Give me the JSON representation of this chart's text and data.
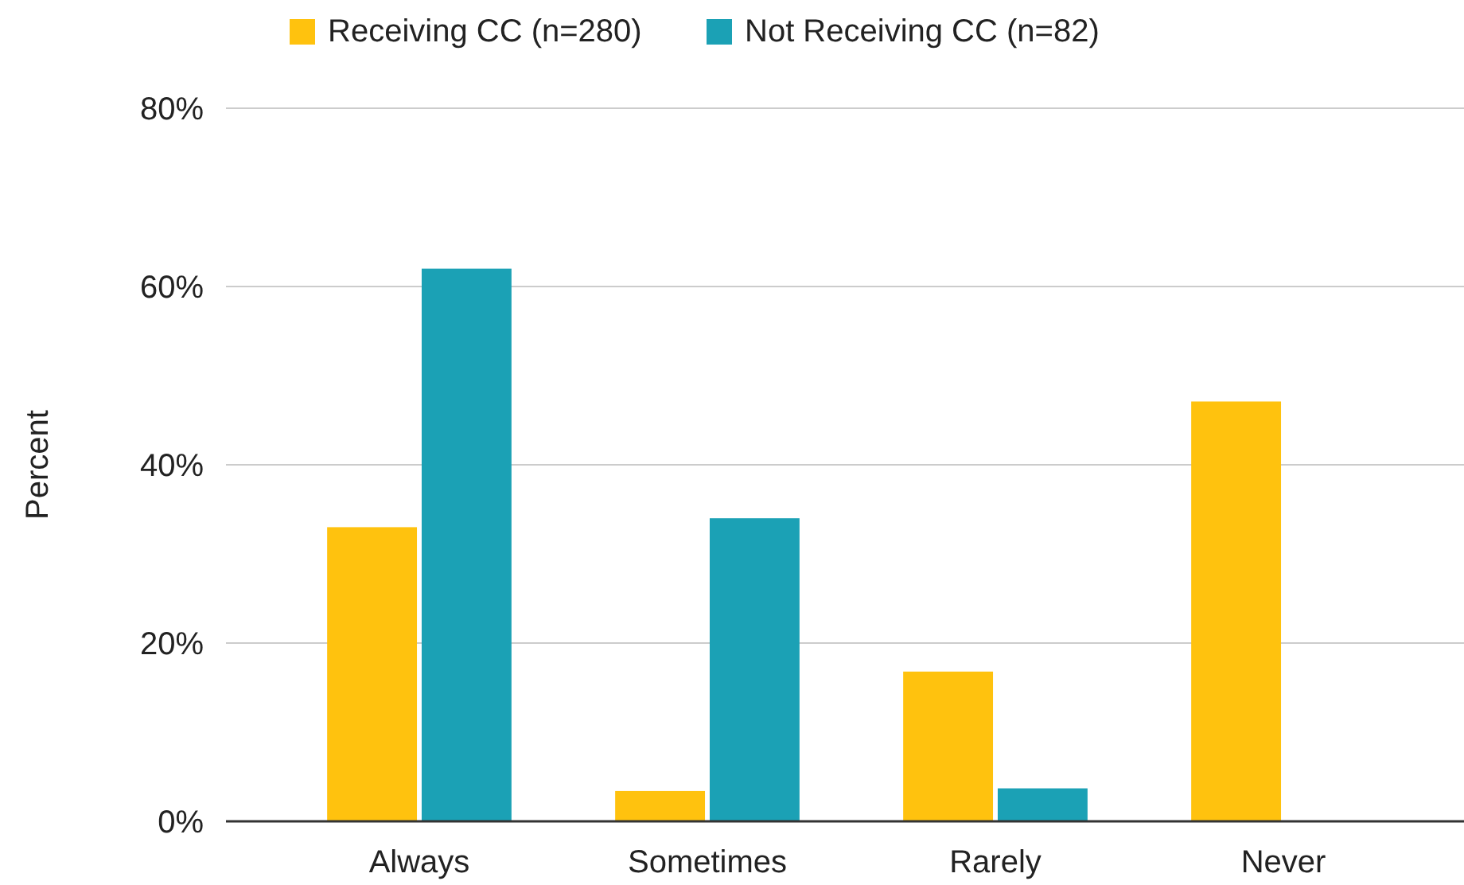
{
  "chart_data": {
    "type": "bar",
    "ylabel": "Percent",
    "categories": [
      "Always",
      "Sometimes",
      "Rarely",
      "Never"
    ],
    "series": [
      {
        "name": "Receiving CC (n=280)",
        "color": "#ffc20e",
        "values": [
          33,
          3.4,
          16.8,
          47.1
        ]
      },
      {
        "name": "Not Receiving CC (n=82)",
        "color": "#1ba1b5",
        "values": [
          62,
          34,
          3.7,
          0
        ]
      }
    ],
    "ylim": [
      0,
      80
    ],
    "yticks": [
      {
        "value": 0,
        "label": "0%"
      },
      {
        "value": 20,
        "label": "20%"
      },
      {
        "value": 40,
        "label": "40%"
      },
      {
        "value": 60,
        "label": "60%"
      },
      {
        "value": 80,
        "label": "80%"
      }
    ],
    "grid": "y",
    "legend": "top"
  }
}
